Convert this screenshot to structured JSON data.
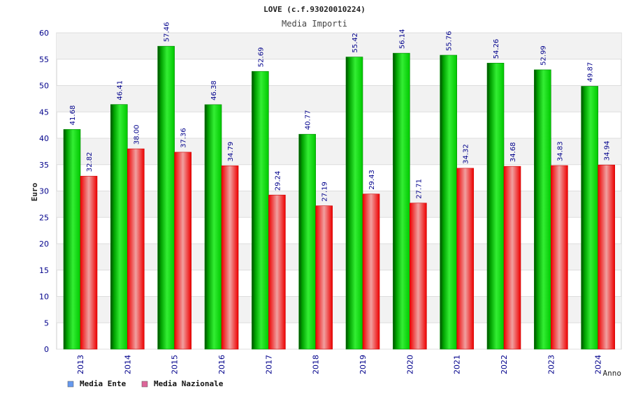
{
  "chart_data": {
    "type": "bar",
    "title": "LOVE (c.f.93020010224)",
    "subtitle": "Media Importi",
    "xlabel": "Anno",
    "ylabel": "Euro",
    "ylim": [
      0,
      60
    ],
    "ytick_step": 5,
    "grid": true,
    "legend_position": "bottom-left",
    "categories": [
      "2013",
      "2014",
      "2015",
      "2016",
      "2017",
      "2018",
      "2019",
      "2020",
      "2021",
      "2022",
      "2023",
      "2024"
    ],
    "series": [
      {
        "name": "Media Ente",
        "color": "#00cc00",
        "legend_color": "#6699ee",
        "values": [
          41.68,
          46.41,
          57.46,
          46.38,
          52.69,
          40.77,
          55.42,
          56.14,
          55.76,
          54.26,
          52.99,
          49.87
        ],
        "labels": [
          "41.68",
          "46.41",
          "57.46",
          "46.38",
          "52.69",
          "40.77",
          "55.42",
          "56.14",
          "55.76",
          "54.26",
          "52.99",
          "49.87"
        ]
      },
      {
        "name": "Media Nazionale",
        "color": "#ff0000",
        "legend_color": "#dd6699",
        "values": [
          32.82,
          38.0,
          37.36,
          34.79,
          29.24,
          27.19,
          29.43,
          27.71,
          34.32,
          34.68,
          34.83,
          34.94
        ],
        "labels": [
          "32.82",
          "38.00",
          "37.36",
          "34.79",
          "29.24",
          "27.19",
          "29.43",
          "27.71",
          "34.32",
          "34.68",
          "34.83",
          "34.94"
        ]
      }
    ]
  }
}
